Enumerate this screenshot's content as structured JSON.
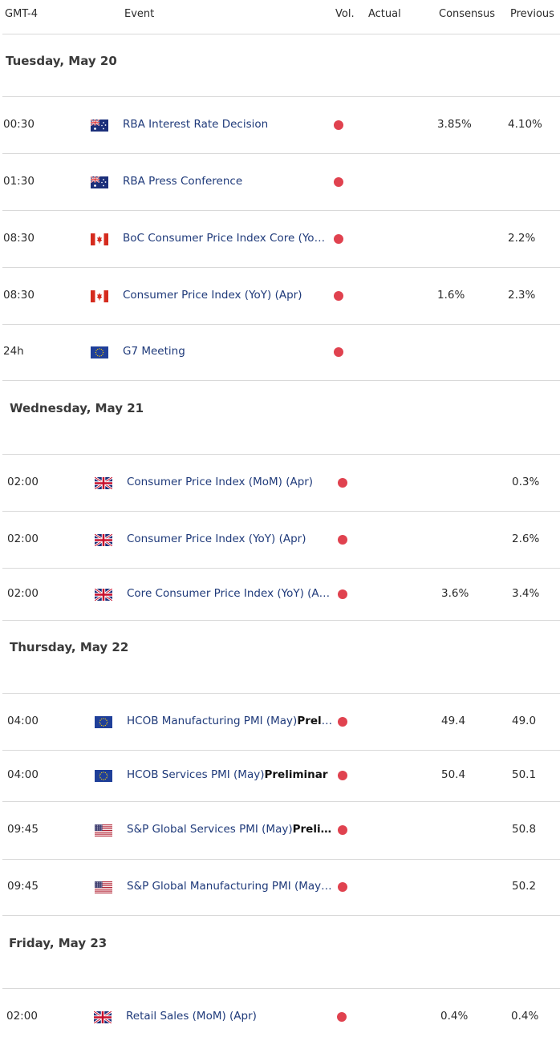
{
  "header": {
    "timezone": "GMT-4",
    "event": "Event",
    "vol": "Vol.",
    "actual": "Actual",
    "consensus": "Consensus",
    "previous": "Previous"
  },
  "days": [
    {
      "label": "Tuesday, May 20",
      "events": [
        {
          "time": "00:30",
          "flag": "australia-flag-icon",
          "event": "RBA Interest Rate Decision",
          "bold": "",
          "actual": "",
          "consensus": "3.85%",
          "previous": "4.10%"
        },
        {
          "time": "01:30",
          "flag": "australia-flag-icon",
          "event": "RBA Press Conference",
          "bold": "",
          "actual": "",
          "consensus": "",
          "previous": ""
        },
        {
          "time": "08:30",
          "flag": "canada-flag-icon",
          "event": "BoC Consumer Price Index Core (Yo…",
          "bold": "",
          "actual": "",
          "consensus": "",
          "previous": "2.2%"
        },
        {
          "time": "08:30",
          "flag": "canada-flag-icon",
          "event": "Consumer Price Index (YoY) (Apr)",
          "bold": "",
          "actual": "",
          "consensus": "1.6%",
          "previous": "2.3%"
        },
        {
          "time": "24h",
          "flag": "eu-flag-icon",
          "event": "G7 Meeting",
          "bold": "",
          "actual": "",
          "consensus": "",
          "previous": ""
        }
      ]
    },
    {
      "label": "Wednesday, May 21",
      "events": [
        {
          "time": "02:00",
          "flag": "uk-flag-icon",
          "event": "Consumer Price Index (MoM) (Apr)",
          "bold": "",
          "actual": "",
          "consensus": "",
          "previous": "0.3%"
        },
        {
          "time": "02:00",
          "flag": "uk-flag-icon",
          "event": "Consumer Price Index (YoY) (Apr)",
          "bold": "",
          "actual": "",
          "consensus": "",
          "previous": "2.6%"
        },
        {
          "time": "02:00",
          "flag": "uk-flag-icon",
          "event": "Core Consumer Price Index (YoY) (A…",
          "bold": "",
          "actual": "",
          "consensus": "3.6%",
          "previous": "3.4%"
        }
      ]
    },
    {
      "label": "Thursday, May 22",
      "events": [
        {
          "time": "04:00",
          "flag": "eu-flag-icon",
          "event": "HCOB Manufacturing PMI (May)",
          "bold": "Preli…",
          "actual": "",
          "consensus": "49.4",
          "previous": "49.0"
        },
        {
          "time": "04:00",
          "flag": "eu-flag-icon",
          "event": "HCOB Services PMI (May)",
          "bold": "Preliminar",
          "actual": "",
          "consensus": "50.4",
          "previous": "50.1"
        },
        {
          "time": "09:45",
          "flag": "us-flag-icon",
          "event": "S&P Global Services PMI (May)",
          "bold": "Preli…",
          "actual": "",
          "consensus": "",
          "previous": "50.8"
        },
        {
          "time": "09:45",
          "flag": "us-flag-icon",
          "event": "S&P Global Manufacturing PMI (May…",
          "bold": "",
          "actual": "",
          "consensus": "",
          "previous": "50.2"
        }
      ]
    },
    {
      "label": "Friday, May 23",
      "events": [
        {
          "time": "02:00",
          "flag": "uk-flag-icon",
          "event": "Retail Sales (MoM) (Apr)",
          "bold": "",
          "actual": "",
          "consensus": "0.4%",
          "previous": "0.4%"
        }
      ]
    }
  ],
  "colors": {
    "event_text": "#1f3a7a",
    "vol_dot": "#e0424f",
    "divider": "#d9d9d9"
  }
}
